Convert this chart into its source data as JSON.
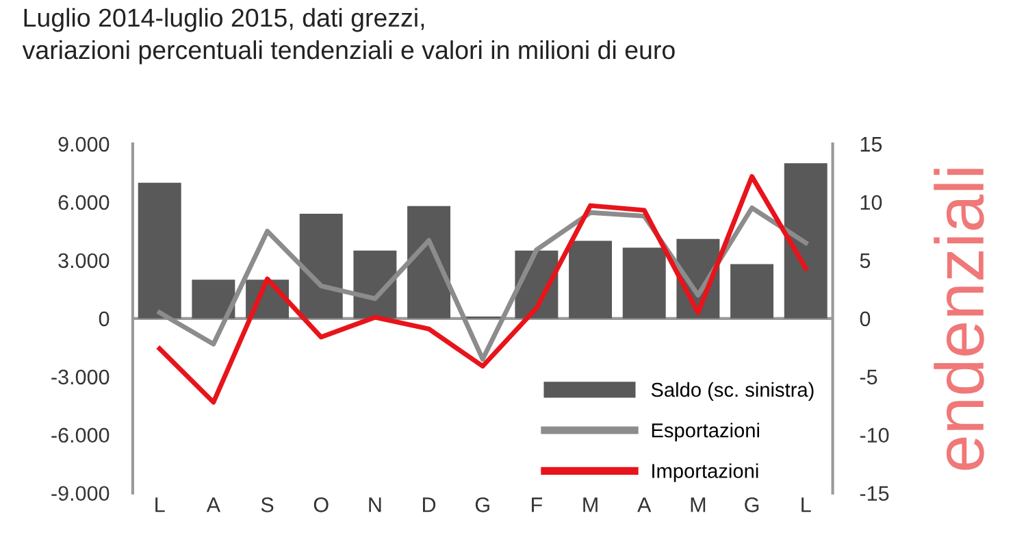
{
  "chart_data": {
    "type": "bar",
    "title": "Luglio 2014-luglio 2015, dati grezzi,\nvariazioni percentuali tendenziali e valori in milioni di euro",
    "y2label": "endenziali",
    "categories": [
      "L",
      "A",
      "S",
      "O",
      "N",
      "D",
      "G",
      "F",
      "M",
      "A",
      "M",
      "G",
      "L"
    ],
    "series": [
      {
        "name": "Saldo (sc. sinistra)",
        "color": "#595959",
        "values": [
          7000,
          2000,
          2000,
          5400,
          3500,
          5800,
          100,
          3500,
          4000,
          3650,
          4100,
          2800,
          8000
        ]
      },
      {
        "name": "Esportazioni",
        "type": "line",
        "axis": "y2",
        "color": "#8c8c8c",
        "values": [
          0.5,
          -2.2,
          7.5,
          2.8,
          1.7,
          6.7,
          -3.5,
          5.9,
          9.1,
          8.8,
          2.0,
          9.5,
          6.5
        ]
      },
      {
        "name": "Importazioni",
        "type": "line",
        "axis": "y2",
        "color": "#e8141b",
        "values": [
          -2.6,
          -7.2,
          3.4,
          -1.6,
          0.1,
          -0.9,
          -4.1,
          0.9,
          9.7,
          9.3,
          0.5,
          12.2,
          4.3
        ]
      }
    ],
    "ylim": [
      -9000,
      9000
    ],
    "yticks": [
      {
        "value": -9000,
        "label": "-9.000"
      },
      {
        "value": -6000,
        "label": "-6.000"
      },
      {
        "value": -3000,
        "label": "-3.000"
      },
      0,
      {
        "value": 3000,
        "label": "3.000"
      },
      {
        "value": 6000,
        "label": "6.000"
      },
      {
        "value": 9000,
        "label": "9.000"
      }
    ],
    "y2lim": [
      -15,
      15
    ],
    "y2ticks": [
      -15,
      -10,
      -5,
      0,
      5,
      10,
      15
    ],
    "ref_lines": [
      {
        "axis": "y",
        "value": 0,
        "color": "#999999"
      }
    ],
    "grid": false,
    "legend": "bottom right",
    "marker": "none",
    "line_style": "solid"
  }
}
